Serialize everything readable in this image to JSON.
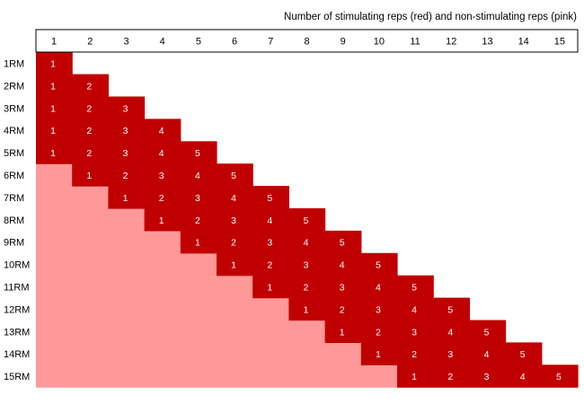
{
  "colors": {
    "stimulating": "#c00000",
    "non_stimulating": "#ff9999",
    "cell_text": "#ffffff",
    "label_text": "#000000"
  },
  "chart_data": {
    "type": "heatmap",
    "title": "Number of stimulating reps (red) and non-stimulating reps (pink)",
    "column_labels": [
      "1",
      "2",
      "3",
      "4",
      "5",
      "6",
      "7",
      "8",
      "9",
      "10",
      "11",
      "12",
      "13",
      "14",
      "15"
    ],
    "row_labels": [
      "1RM",
      "2RM",
      "3RM",
      "4RM",
      "5RM",
      "6RM",
      "7RM",
      "8RM",
      "9RM",
      "10RM",
      "11RM",
      "12RM",
      "13RM",
      "14RM",
      "15RM"
    ],
    "stimulating_reps_max": 5,
    "rows": [
      {
        "label": "1RM",
        "non_stimulating_reps": 0,
        "stimulating_reps": 1,
        "cell_values": [
          1
        ]
      },
      {
        "label": "2RM",
        "non_stimulating_reps": 0,
        "stimulating_reps": 2,
        "cell_values": [
          1,
          2
        ]
      },
      {
        "label": "3RM",
        "non_stimulating_reps": 0,
        "stimulating_reps": 3,
        "cell_values": [
          1,
          2,
          3
        ]
      },
      {
        "label": "4RM",
        "non_stimulating_reps": 0,
        "stimulating_reps": 4,
        "cell_values": [
          1,
          2,
          3,
          4
        ]
      },
      {
        "label": "5RM",
        "non_stimulating_reps": 0,
        "stimulating_reps": 5,
        "cell_values": [
          1,
          2,
          3,
          4,
          5
        ]
      },
      {
        "label": "6RM",
        "non_stimulating_reps": 1,
        "stimulating_reps": 5,
        "cell_values": [
          1,
          2,
          3,
          4,
          5
        ]
      },
      {
        "label": "7RM",
        "non_stimulating_reps": 2,
        "stimulating_reps": 5,
        "cell_values": [
          1,
          2,
          3,
          4,
          5
        ]
      },
      {
        "label": "8RM",
        "non_stimulating_reps": 3,
        "stimulating_reps": 5,
        "cell_values": [
          1,
          2,
          3,
          4,
          5
        ]
      },
      {
        "label": "9RM",
        "non_stimulating_reps": 4,
        "stimulating_reps": 5,
        "cell_values": [
          1,
          2,
          3,
          4,
          5
        ]
      },
      {
        "label": "10RM",
        "non_stimulating_reps": 5,
        "stimulating_reps": 5,
        "cell_values": [
          1,
          2,
          3,
          4,
          5
        ]
      },
      {
        "label": "11RM",
        "non_stimulating_reps": 6,
        "stimulating_reps": 5,
        "cell_values": [
          1,
          2,
          3,
          4,
          5
        ]
      },
      {
        "label": "12RM",
        "non_stimulating_reps": 7,
        "stimulating_reps": 5,
        "cell_values": [
          1,
          2,
          3,
          4,
          5
        ]
      },
      {
        "label": "13RM",
        "non_stimulating_reps": 8,
        "stimulating_reps": 5,
        "cell_values": [
          1,
          2,
          3,
          4,
          5
        ]
      },
      {
        "label": "14RM",
        "non_stimulating_reps": 9,
        "stimulating_reps": 5,
        "cell_values": [
          1,
          2,
          3,
          4,
          5
        ]
      },
      {
        "label": "15RM",
        "non_stimulating_reps": 10,
        "stimulating_reps": 5,
        "cell_values": [
          1,
          2,
          3,
          4,
          5
        ]
      }
    ]
  }
}
